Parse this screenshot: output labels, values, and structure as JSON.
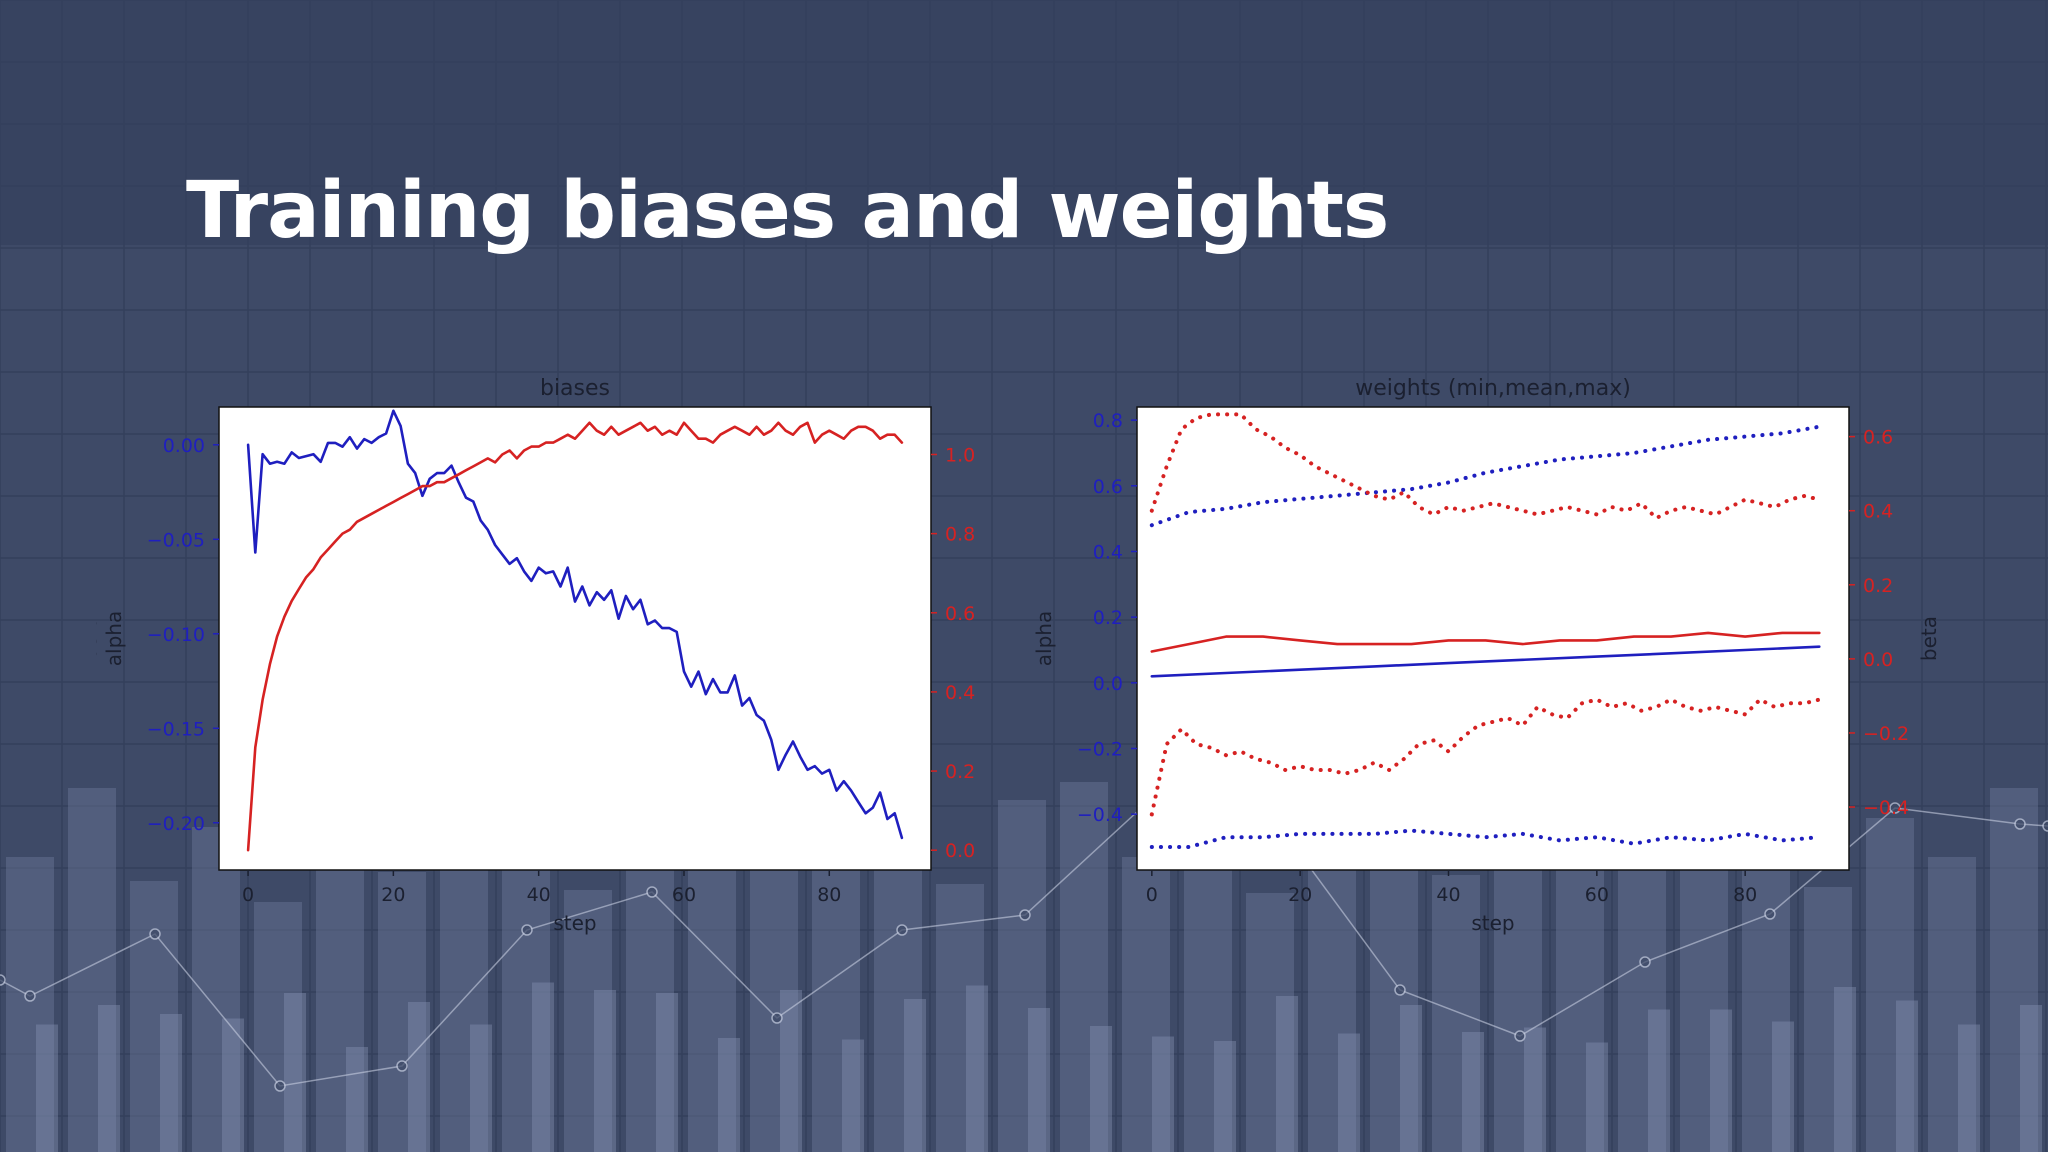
{
  "slide": {
    "title": "Training biases and weights"
  },
  "chart_data": [
    {
      "type": "line",
      "title": "biases",
      "xlabel": "step",
      "ylabel_left": "alpha",
      "ylabel_right": "beta",
      "xlim": [
        -4,
        94
      ],
      "ylim_left": [
        -0.225,
        0.02
      ],
      "ylim_right": [
        -0.05,
        1.12
      ],
      "xticks": [
        0,
        20,
        40,
        60,
        80
      ],
      "yticks_left": [
        0.0,
        -0.05,
        -0.1,
        -0.15,
        -0.2
      ],
      "ytick_labels_left": [
        "0.00",
        "−0.05",
        "−0.10",
        "−0.15",
        "−0.20"
      ],
      "yticks_right": [
        1.0,
        0.8,
        0.6,
        0.4,
        0.2,
        0.0
      ],
      "ytick_labels_right": [
        "1.0",
        "0.8",
        "0.6",
        "0.4",
        "0.2",
        "0.0"
      ],
      "left_color": "#1f1fbf",
      "right_color": "#d62222",
      "series": [
        {
          "axis": "left",
          "color": "#1f1fbf",
          "style": "solid",
          "x": [
            0,
            1,
            2,
            3,
            4,
            5,
            6,
            7,
            8,
            9,
            10,
            11,
            12,
            13,
            14,
            15,
            16,
            17,
            18,
            19,
            20,
            21,
            22,
            23,
            24,
            25,
            26,
            27,
            28,
            29,
            30,
            31,
            32,
            33,
            34,
            35,
            36,
            37,
            38,
            39,
            40,
            41,
            42,
            43,
            44,
            45,
            46,
            47,
            48,
            49,
            50,
            51,
            52,
            53,
            54,
            55,
            56,
            57,
            58,
            59,
            60,
            61,
            62,
            63,
            64,
            65,
            66,
            67,
            68,
            69,
            70,
            71,
            72,
            73,
            74,
            75,
            76,
            77,
            78,
            79,
            80,
            81,
            82,
            83,
            84,
            85,
            86,
            87,
            88,
            89,
            90
          ],
          "y": [
            0.0,
            -0.057,
            -0.005,
            -0.01,
            -0.009,
            -0.01,
            -0.004,
            -0.007,
            -0.006,
            -0.005,
            -0.009,
            0.001,
            0.001,
            -0.001,
            0.004,
            -0.002,
            0.003,
            0.001,
            0.004,
            0.006,
            0.018,
            0.01,
            -0.01,
            -0.015,
            -0.027,
            -0.018,
            -0.015,
            -0.015,
            -0.011,
            -0.02,
            -0.028,
            -0.03,
            -0.04,
            -0.045,
            -0.053,
            -0.058,
            -0.063,
            -0.06,
            -0.067,
            -0.072,
            -0.065,
            -0.068,
            -0.067,
            -0.075,
            -0.065,
            -0.083,
            -0.075,
            -0.085,
            -0.078,
            -0.082,
            -0.077,
            -0.092,
            -0.08,
            -0.087,
            -0.082,
            -0.095,
            -0.093,
            -0.097,
            -0.097,
            -0.099,
            -0.12,
            -0.128,
            -0.12,
            -0.132,
            -0.124,
            -0.131,
            -0.131,
            -0.122,
            -0.138,
            -0.134,
            -0.143,
            -0.146,
            -0.156,
            -0.172,
            -0.164,
            -0.157,
            -0.165,
            -0.172,
            -0.17,
            -0.174,
            -0.172,
            -0.183,
            -0.178,
            -0.183,
            -0.189,
            -0.195,
            -0.192,
            -0.184,
            -0.198,
            -0.195,
            -0.208
          ]
        },
        {
          "axis": "right",
          "color": "#d62222",
          "style": "solid",
          "x": [
            0,
            1,
            2,
            3,
            4,
            5,
            6,
            7,
            8,
            9,
            10,
            11,
            12,
            13,
            14,
            15,
            16,
            17,
            18,
            19,
            20,
            21,
            22,
            23,
            24,
            25,
            26,
            27,
            28,
            29,
            30,
            31,
            32,
            33,
            34,
            35,
            36,
            37,
            38,
            39,
            40,
            41,
            42,
            43,
            44,
            45,
            46,
            47,
            48,
            49,
            50,
            51,
            52,
            53,
            54,
            55,
            56,
            57,
            58,
            59,
            60,
            61,
            62,
            63,
            64,
            65,
            66,
            67,
            68,
            69,
            70,
            71,
            72,
            73,
            74,
            75,
            76,
            77,
            78,
            79,
            80,
            81,
            82,
            83,
            84,
            85,
            86,
            87,
            88,
            89,
            90
          ],
          "y": [
            0.0,
            0.26,
            0.38,
            0.47,
            0.54,
            0.59,
            0.63,
            0.66,
            0.69,
            0.71,
            0.74,
            0.76,
            0.78,
            0.8,
            0.81,
            0.83,
            0.84,
            0.85,
            0.86,
            0.87,
            0.88,
            0.89,
            0.9,
            0.91,
            0.92,
            0.92,
            0.93,
            0.93,
            0.94,
            0.95,
            0.96,
            0.97,
            0.98,
            0.99,
            0.98,
            1.0,
            1.01,
            0.99,
            1.01,
            1.02,
            1.02,
            1.03,
            1.03,
            1.04,
            1.05,
            1.04,
            1.06,
            1.08,
            1.06,
            1.05,
            1.07,
            1.05,
            1.06,
            1.07,
            1.08,
            1.06,
            1.07,
            1.05,
            1.06,
            1.05,
            1.08,
            1.06,
            1.04,
            1.04,
            1.03,
            1.05,
            1.06,
            1.07,
            1.06,
            1.05,
            1.07,
            1.05,
            1.06,
            1.08,
            1.06,
            1.05,
            1.07,
            1.08,
            1.03,
            1.05,
            1.06,
            1.05,
            1.04,
            1.06,
            1.07,
            1.07,
            1.06,
            1.04,
            1.05,
            1.05,
            1.03
          ]
        }
      ]
    },
    {
      "type": "line",
      "title": "weights (min,mean,max)",
      "xlabel": "step",
      "ylabel_left": "alpha",
      "ylabel_right": "beta",
      "xlim": [
        -2,
        94
      ],
      "ylim_left": [
        -0.57,
        0.84
      ],
      "ylim_right": [
        -0.57,
        0.68
      ],
      "xticks": [
        0,
        20,
        40,
        60,
        80
      ],
      "yticks_left": [
        0.8,
        0.6,
        0.4,
        0.2,
        0.0,
        -0.2,
        -0.4
      ],
      "ytick_labels_left": [
        "0.8",
        "0.6",
        "0.4",
        "0.2",
        "0.0",
        "−0.2",
        "−0.4"
      ],
      "yticks_right": [
        0.6,
        0.4,
        0.2,
        0.0,
        -0.2,
        -0.4
      ],
      "ytick_labels_right": [
        "0.6",
        "0.4",
        "0.2",
        "0.0",
        "−0.2",
        "−0.4"
      ],
      "left_color": "#1f1fbf",
      "right_color": "#d62222",
      "series": [
        {
          "axis": "left",
          "color": "#1f1fbf",
          "style": "dotted",
          "x": [
            0,
            5,
            10,
            15,
            20,
            25,
            30,
            35,
            40,
            45,
            50,
            55,
            60,
            65,
            70,
            75,
            80,
            85,
            90
          ],
          "y": [
            0.48,
            0.52,
            0.53,
            0.55,
            0.56,
            0.57,
            0.58,
            0.59,
            0.61,
            0.64,
            0.66,
            0.68,
            0.69,
            0.7,
            0.72,
            0.74,
            0.75,
            0.76,
            0.78
          ]
        },
        {
          "axis": "left",
          "color": "#1f1fbf",
          "style": "solid",
          "x": [
            0,
            10,
            20,
            30,
            40,
            50,
            60,
            70,
            80,
            90
          ],
          "y": [
            0.02,
            0.03,
            0.04,
            0.05,
            0.06,
            0.07,
            0.08,
            0.09,
            0.1,
            0.11
          ]
        },
        {
          "axis": "left",
          "color": "#1f1fbf",
          "style": "dotted",
          "x": [
            0,
            5,
            10,
            15,
            20,
            25,
            30,
            35,
            40,
            45,
            50,
            55,
            60,
            65,
            70,
            75,
            80,
            85,
            90
          ],
          "y": [
            -0.5,
            -0.5,
            -0.47,
            -0.47,
            -0.46,
            -0.46,
            -0.46,
            -0.45,
            -0.46,
            -0.47,
            -0.46,
            -0.48,
            -0.47,
            -0.49,
            -0.47,
            -0.48,
            -0.46,
            -0.48,
            -0.47
          ]
        },
        {
          "axis": "right",
          "color": "#d62222",
          "style": "dotted",
          "x": [
            0,
            2,
            4,
            6,
            8,
            10,
            12,
            14,
            16,
            18,
            20,
            22,
            24,
            26,
            28,
            30,
            32,
            34,
            36,
            38,
            40,
            42,
            44,
            46,
            48,
            50,
            52,
            54,
            56,
            58,
            60,
            62,
            64,
            66,
            68,
            70,
            72,
            74,
            76,
            78,
            80,
            82,
            84,
            86,
            88,
            90
          ],
          "y": [
            0.4,
            0.52,
            0.62,
            0.65,
            0.66,
            0.66,
            0.66,
            0.62,
            0.6,
            0.57,
            0.55,
            0.52,
            0.5,
            0.48,
            0.46,
            0.44,
            0.43,
            0.45,
            0.41,
            0.39,
            0.41,
            0.4,
            0.41,
            0.42,
            0.41,
            0.4,
            0.39,
            0.4,
            0.41,
            0.4,
            0.39,
            0.41,
            0.4,
            0.42,
            0.38,
            0.4,
            0.41,
            0.4,
            0.39,
            0.41,
            0.43,
            0.42,
            0.41,
            0.43,
            0.44,
            0.43
          ]
        },
        {
          "axis": "right",
          "color": "#d62222",
          "style": "solid",
          "x": [
            0,
            5,
            10,
            15,
            20,
            25,
            30,
            35,
            40,
            45,
            50,
            55,
            60,
            65,
            70,
            75,
            80,
            85,
            90
          ],
          "y": [
            0.02,
            0.04,
            0.06,
            0.06,
            0.05,
            0.04,
            0.04,
            0.04,
            0.05,
            0.05,
            0.04,
            0.05,
            0.05,
            0.06,
            0.06,
            0.07,
            0.06,
            0.07,
            0.07
          ]
        },
        {
          "axis": "right",
          "color": "#d62222",
          "style": "dotted",
          "x": [
            0,
            2,
            4,
            6,
            8,
            10,
            12,
            14,
            16,
            18,
            20,
            22,
            24,
            26,
            28,
            30,
            32,
            34,
            36,
            38,
            40,
            42,
            44,
            46,
            48,
            50,
            52,
            54,
            56,
            58,
            60,
            62,
            64,
            66,
            68,
            70,
            72,
            74,
            76,
            78,
            80,
            82,
            84,
            86,
            88,
            90
          ],
          "y": [
            -0.42,
            -0.23,
            -0.19,
            -0.23,
            -0.24,
            -0.26,
            -0.25,
            -0.27,
            -0.28,
            -0.3,
            -0.29,
            -0.3,
            -0.3,
            -0.31,
            -0.3,
            -0.28,
            -0.3,
            -0.27,
            -0.23,
            -0.22,
            -0.25,
            -0.21,
            -0.18,
            -0.17,
            -0.16,
            -0.18,
            -0.13,
            -0.15,
            -0.16,
            -0.12,
            -0.11,
            -0.13,
            -0.12,
            -0.14,
            -0.13,
            -0.11,
            -0.13,
            -0.14,
            -0.13,
            -0.14,
            -0.15,
            -0.11,
            -0.13,
            -0.12,
            -0.12,
            -0.11
          ]
        }
      ]
    }
  ]
}
